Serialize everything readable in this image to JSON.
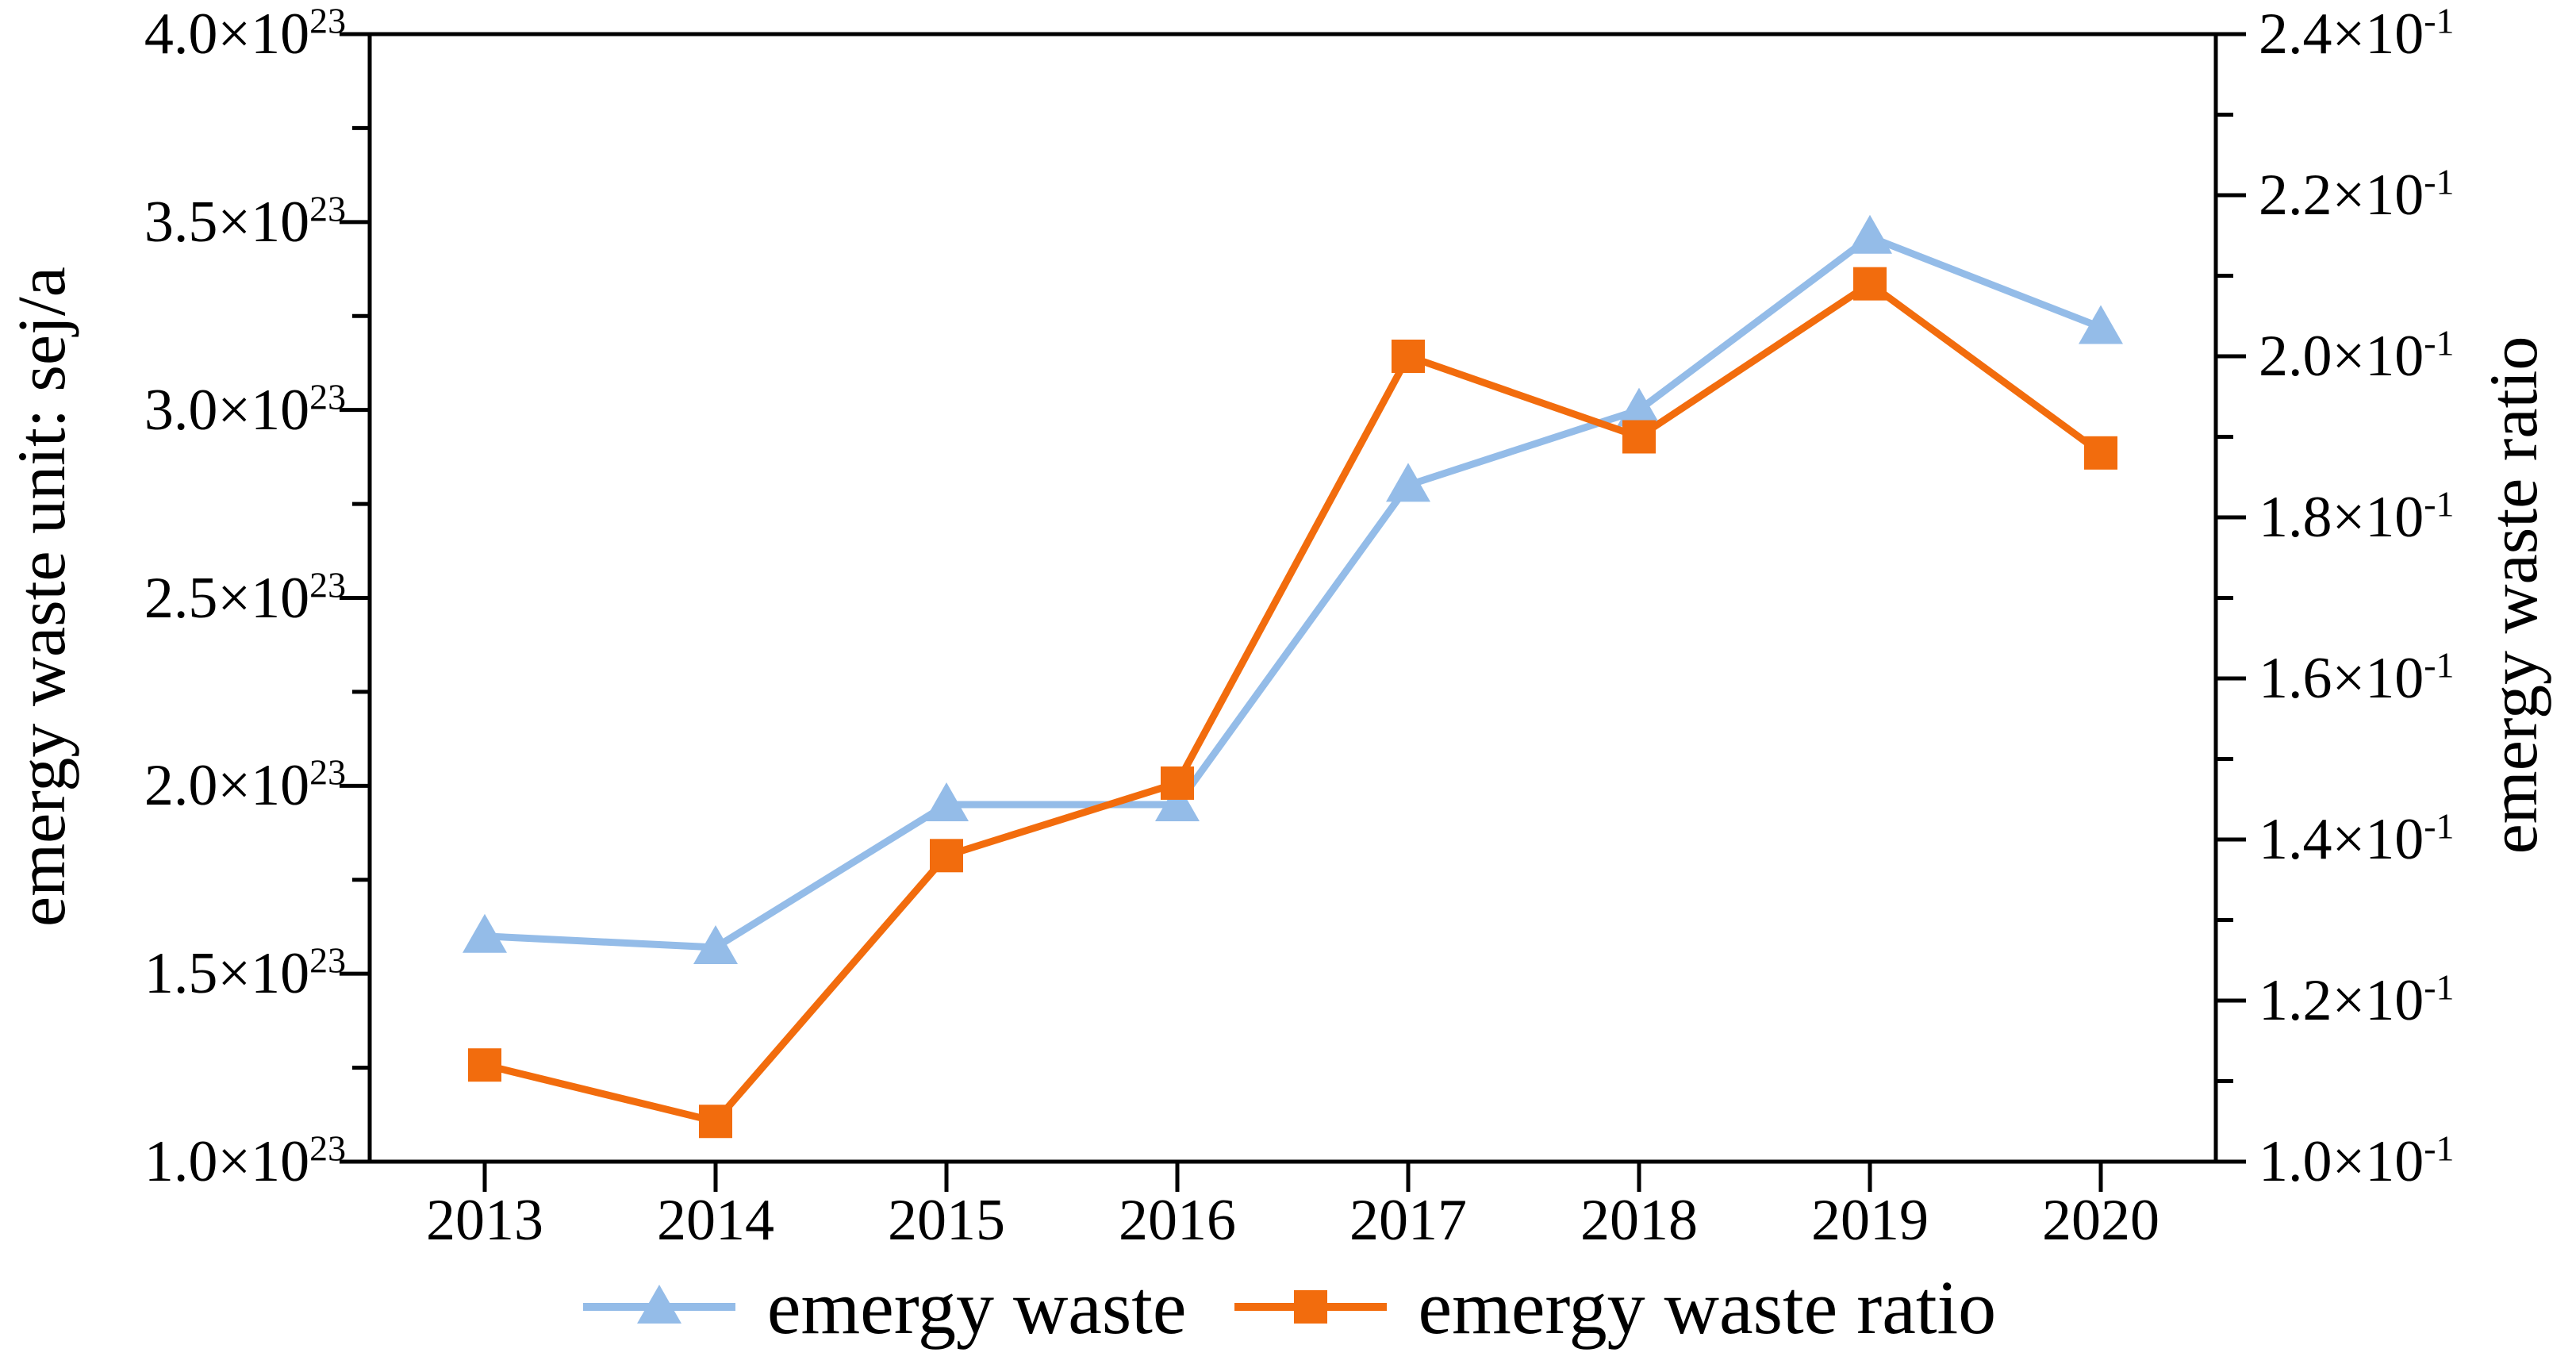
{
  "chart_data": {
    "type": "line",
    "title": "",
    "categories": [
      "2013",
      "2014",
      "2015",
      "2016",
      "2017",
      "2018",
      "2019",
      "2020"
    ],
    "series": [
      {
        "name": "emergy waste",
        "axis": "left",
        "color": "#94BCE8",
        "marker": "triangle",
        "unit": "sej/a",
        "value_scale": "1e23",
        "values": [
          1.6,
          1.57,
          1.95,
          1.95,
          2.8,
          3.0,
          3.46,
          3.22
        ]
      },
      {
        "name": "emergy waste ratio",
        "axis": "right",
        "color": "#F26C0D",
        "marker": "square",
        "value_scale": "1e-1",
        "values": [
          1.12,
          1.05,
          1.38,
          1.47,
          2.0,
          1.9,
          2.09,
          1.88
        ]
      }
    ],
    "left_axis": {
      "label": "emergy waste unit: sej/a",
      "min": 1.0,
      "max": 4.0,
      "tick_step": 0.5,
      "minor_step": 0.25,
      "tick_labels": [
        "4.0×10^23",
        "3.5×10^23",
        "3.0×10^23",
        "2.5×10^23",
        "2.0×10^23",
        "1.5×10^23",
        "1.0×10^23"
      ]
    },
    "right_axis": {
      "label": "emergy waste ratio",
      "min": 1.0,
      "max": 2.4,
      "tick_step": 0.2,
      "minor_step": 0.1,
      "tick_labels": [
        "2.4×10^-1",
        "2.2×10^-1",
        "2.0×10^-1",
        "1.8×10^-1",
        "1.6×10^-1",
        "1.4×10^-1",
        "1.2×10^-1",
        "1.0×10^-1"
      ]
    },
    "x_axis": {
      "label": "",
      "tick_labels": [
        "2013",
        "2014",
        "2015",
        "2016",
        "2017",
        "2018",
        "2019",
        "2020"
      ]
    },
    "legend": {
      "position": "bottom",
      "items": [
        {
          "label": "emergy waste",
          "color": "#94BCE8",
          "marker": "triangle"
        },
        {
          "label": "emergy waste ratio",
          "color": "#F26C0D",
          "marker": "square"
        }
      ]
    },
    "grid": false,
    "frame_color": "#000000"
  }
}
